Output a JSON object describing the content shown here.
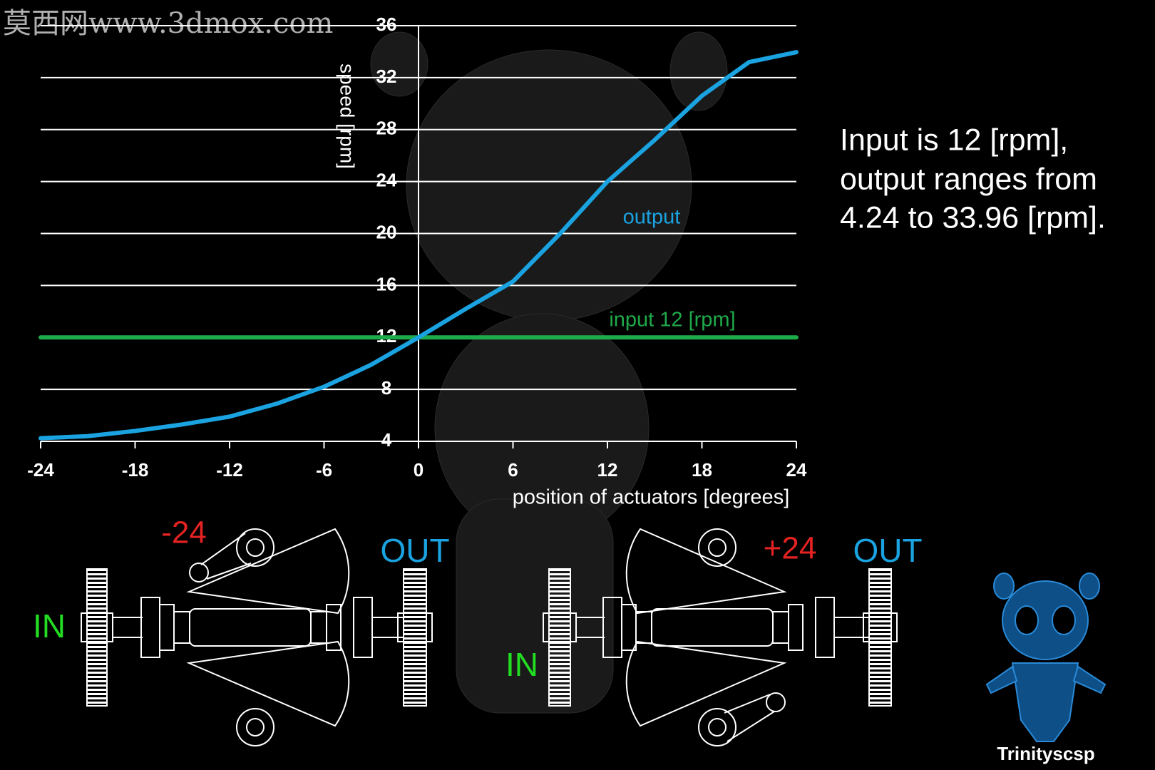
{
  "chart_data": {
    "type": "line",
    "watermark": "莫西网www.3dmox.com",
    "xlabel": "position of actuators [degrees]",
    "ylabel": "speed [rpm]",
    "x": [
      -24,
      -21,
      -18,
      -15,
      -12,
      -9,
      -6,
      -3,
      0,
      3,
      6,
      9,
      12,
      15,
      18,
      21,
      24
    ],
    "series": [
      {
        "name": "output",
        "color": "#1aa3e0",
        "values": [
          4.24,
          4.4,
          4.8,
          5.3,
          5.9,
          6.9,
          8.2,
          9.9,
          12,
          14.2,
          16.3,
          20,
          24,
          27.2,
          30.6,
          33.2,
          33.96
        ]
      },
      {
        "name": "input 12 [rpm]",
        "color": "#1faa4a",
        "values": [
          12,
          12,
          12,
          12,
          12,
          12,
          12,
          12,
          12,
          12,
          12,
          12,
          12,
          12,
          12,
          12,
          12
        ]
      }
    ],
    "xlim": [
      -24,
      24
    ],
    "xticks": [
      -24,
      -18,
      -12,
      -6,
      0,
      6,
      12,
      18,
      24
    ],
    "ylim": [
      4,
      36
    ],
    "yticks": [
      4,
      8,
      12,
      16,
      20,
      24,
      28,
      32,
      36
    ],
    "grid": true,
    "annotation": [
      "Input is 12 [rpm],",
      "output ranges from",
      "4.24 to 33.96 [rpm]."
    ],
    "diagram_labels": {
      "left_in": "IN",
      "left_angle": "-24",
      "left_out": "OUT",
      "right_in": "IN",
      "right_angle": "+24",
      "right_out": "OUT",
      "credit": "Trinityscsp"
    }
  }
}
